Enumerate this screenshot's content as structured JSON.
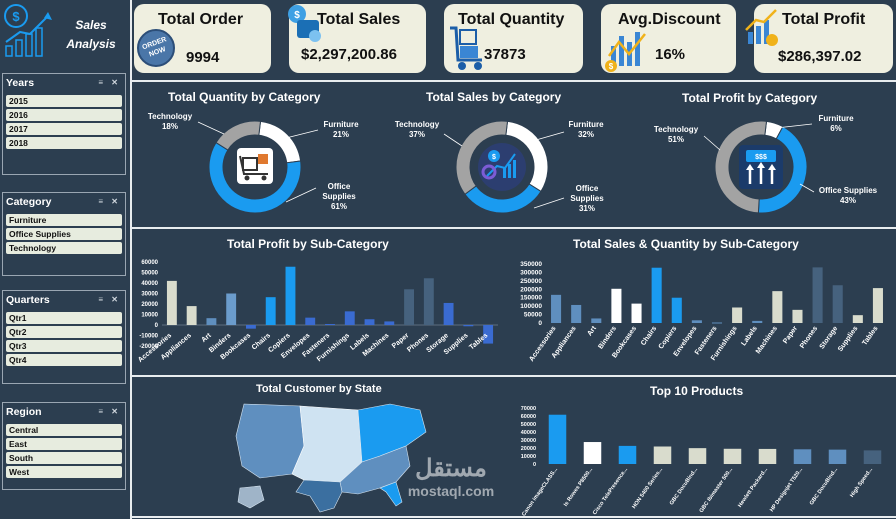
{
  "app": {
    "title_line1": "Sales",
    "title_line2": "Analysis"
  },
  "kpis": {
    "order": {
      "label": "Total Order",
      "value": "9994"
    },
    "sales": {
      "label": "Total Sales",
      "value": "$2,297,200.86"
    },
    "quantity": {
      "label": "Total Quantity",
      "value": "37873"
    },
    "discount": {
      "label": "Avg.Discount",
      "value": "16%"
    },
    "profit": {
      "label": "Total Profit",
      "value": "$286,397.02"
    }
  },
  "slicers": {
    "years": {
      "label": "Years",
      "items": [
        "2015",
        "2016",
        "2017",
        "2018"
      ]
    },
    "category": {
      "label": "Category",
      "items": [
        "Furniture",
        "Office Supplies",
        "Technology"
      ]
    },
    "quarters": {
      "label": "Quarters",
      "items": [
        "Qtr1",
        "Qtr2",
        "Qtr3",
        "Qtr4"
      ]
    },
    "region": {
      "label": "Region",
      "items": [
        "Central",
        "East",
        "South",
        "West"
      ]
    }
  },
  "colors": {
    "bg": "#2c3e50",
    "blue": "#1a9bf0",
    "gray": "#a3a3a3",
    "white": "#ffffff",
    "kpi_bg": "#efefe0"
  },
  "chart_data": [
    {
      "type": "pie",
      "title": "Total Quantity by Category",
      "categories": [
        "Furniture",
        "Office Supplies",
        "Technology"
      ],
      "values": [
        21,
        61,
        18
      ],
      "labels": {
        "Furniture": "21%",
        "Office Supplies": "61%",
        "Technology": "18%"
      }
    },
    {
      "type": "pie",
      "title": "Total Sales by Category",
      "categories": [
        "Furniture",
        "Office Supplies",
        "Technology"
      ],
      "values": [
        32,
        31,
        37
      ],
      "labels": {
        "Furniture": "32%",
        "Office Supplies": "31%",
        "Technology": "37%"
      }
    },
    {
      "type": "pie",
      "title": "Total Profit by Category",
      "categories": [
        "Furniture",
        "Office Supplies",
        "Technology"
      ],
      "values": [
        6,
        43,
        51
      ],
      "labels": {
        "Furniture": "6%",
        "Office Supplies": "43%",
        "Technology": "51%"
      }
    },
    {
      "type": "bar",
      "title": "Total Profit by Sub-Category",
      "categories": [
        "Accessories",
        "Appliances",
        "Art",
        "Binders",
        "Bookcases",
        "Chairs",
        "Copiers",
        "Envelopes",
        "Fasteners",
        "Furnishings",
        "Labels",
        "Machines",
        "Paper",
        "Phones",
        "Storage",
        "Supplies",
        "Tables"
      ],
      "values": [
        42000,
        18000,
        6500,
        30000,
        -3500,
        26500,
        55500,
        7000,
        950,
        13000,
        5500,
        3400,
        34000,
        44500,
        21000,
        -1200,
        -17700
      ],
      "ylim": [
        -20000,
        60000
      ],
      "yticks": [
        "60000",
        "50000",
        "40000",
        "30000",
        "20000",
        "10000",
        "0",
        "-10000",
        "-20000"
      ]
    },
    {
      "type": "bar",
      "title": "Total Sales & Quantity by Sub-Category",
      "categories": [
        "Accessories",
        "Appliances",
        "Art",
        "Binders",
        "Bookcases",
        "Chairs",
        "Copiers",
        "Envelopes",
        "Fasteners",
        "Furnishings",
        "Labels",
        "Machines",
        "Paper",
        "Phones",
        "Storage",
        "Supplies",
        "Tables"
      ],
      "series": [
        {
          "values": [
            167000,
            107000,
            27000,
            203000,
            115000,
            328000,
            150000,
            16000,
            3000,
            92000,
            12500,
            189000,
            78000,
            330000,
            224000,
            46500,
            207000
          ]
        },
        {
          "values": [
            2976,
            1729,
            3000,
            5974,
            868,
            2356,
            234,
            906,
            914,
            3563,
            1400,
            440,
            5178,
            3289,
            3158,
            647,
            1241
          ]
        }
      ],
      "ylim": [
        0,
        350000
      ],
      "yticks": [
        "350000",
        "300000",
        "250000",
        "200000",
        "150000",
        "100000",
        "50000",
        "0"
      ]
    },
    {
      "type": "map",
      "title": "Total Customer by State"
    },
    {
      "type": "bar",
      "title": "Top 10 Products",
      "categories": [
        "Canon imageCLASS...",
        "Is Rowes P8500...",
        "Cisco TelePresence...",
        "HON 5400 Series...",
        "GBC DocuBind...",
        "GBC Ibimaster 500...",
        "Hewlett Packard...",
        "HP Designjet T520...",
        "GBC DocuBind...",
        "High Speed..."
      ],
      "values": [
        61600,
        27450,
        22640,
        21870,
        19820,
        19025,
        18840,
        18375,
        17965,
        17030
      ],
      "ylim": [
        0,
        70000
      ],
      "yticks": [
        "70000",
        "60000",
        "50000",
        "40000",
        "30000",
        "20000",
        "10000",
        "0"
      ]
    }
  ],
  "watermark": {
    "text_ar": "مستقل",
    "text_en": "mostaql.com"
  }
}
